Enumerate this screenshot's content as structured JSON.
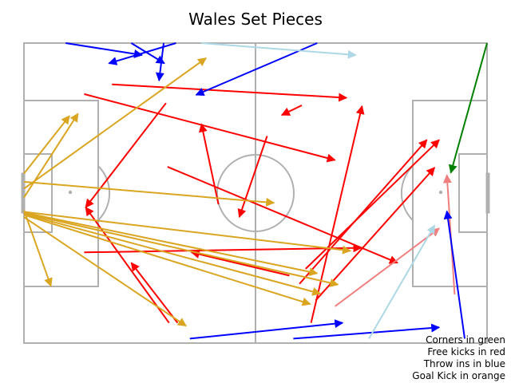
{
  "chart_data": {
    "type": "line",
    "title": "Wales Set Pieces",
    "pitch": {
      "length": 120,
      "width": 80,
      "line_color": "#b0b0b0"
    },
    "legend": [
      "Corners in green",
      "Free kicks in red",
      "Throw ins in blue",
      "Goal Kick in orange"
    ],
    "legend_position": "bottom-right",
    "colors": {
      "corner": "#008000",
      "free_kick": "#ff0000",
      "free_kick_light": "#f08080",
      "throw_in": "#0000ff",
      "throw_in_light": "#add8e6",
      "goal_kick": "#daa520"
    },
    "series": [
      {
        "name": "Corners in green",
        "color": "#008000",
        "passes": [
          {
            "x1": 120.0,
            "y1": 0.0,
            "x2": 110.6,
            "y2": 34.6
          }
        ]
      },
      {
        "name": "Free kicks in red",
        "color": "#ff0000",
        "passes": [
          {
            "x1": 22.8,
            "y1": 11.0,
            "x2": 83.6,
            "y2": 14.6
          },
          {
            "x1": 15.6,
            "y1": 13.6,
            "x2": 80.6,
            "y2": 31.2
          },
          {
            "x1": 36.8,
            "y1": 16.0,
            "x2": 16.0,
            "y2": 43.8
          },
          {
            "x1": 72.0,
            "y1": 16.6,
            "x2": 66.8,
            "y2": 19.2
          },
          {
            "x1": 63.0,
            "y1": 24.8,
            "x2": 55.8,
            "y2": 46.4
          },
          {
            "x1": 50.4,
            "y1": 43.0,
            "x2": 46.0,
            "y2": 21.6
          },
          {
            "x1": 37.2,
            "y1": 33.0,
            "x2": 96.8,
            "y2": 58.6
          },
          {
            "x1": 15.6,
            "y1": 55.8,
            "x2": 87.4,
            "y2": 54.6
          },
          {
            "x1": 68.8,
            "y1": 62.0,
            "x2": 43.4,
            "y2": 55.8
          },
          {
            "x1": 37.6,
            "y1": 74.6,
            "x2": 16.0,
            "y2": 43.8
          },
          {
            "x1": 39.8,
            "y1": 74.6,
            "x2": 27.8,
            "y2": 58.6
          },
          {
            "x1": 74.4,
            "y1": 74.6,
            "x2": 87.6,
            "y2": 16.8
          },
          {
            "x1": 71.4,
            "y1": 64.2,
            "x2": 104.4,
            "y2": 25.8
          },
          {
            "x1": 73.0,
            "y1": 60.2,
            "x2": 107.6,
            "y2": 25.8
          },
          {
            "x1": 75.6,
            "y1": 68.6,
            "x2": 106.4,
            "y2": 33.2
          }
        ]
      },
      {
        "name": "Free kicks (light)",
        "color": "#f08080",
        "passes": [
          {
            "x1": 80.6,
            "y1": 70.2,
            "x2": 107.6,
            "y2": 49.4
          },
          {
            "x1": 111.6,
            "y1": 67.0,
            "x2": 109.6,
            "y2": 35.2
          }
        ]
      },
      {
        "name": "Throw ins in blue",
        "color": "#0000ff",
        "passes": [
          {
            "x1": 10.8,
            "y1": 0.0,
            "x2": 30.6,
            "y2": 3.2
          },
          {
            "x1": 27.8,
            "y1": 0.0,
            "x2": 36.4,
            "y2": 5.4
          },
          {
            "x1": 39.4,
            "y1": 0.0,
            "x2": 22.0,
            "y2": 5.4
          },
          {
            "x1": 36.2,
            "y1": 0.0,
            "x2": 35.0,
            "y2": 10.0
          },
          {
            "x1": 76.0,
            "y1": 0.0,
            "x2": 44.6,
            "y2": 13.8
          },
          {
            "x1": 43.0,
            "y1": 78.8,
            "x2": 82.6,
            "y2": 74.6
          },
          {
            "x1": 69.8,
            "y1": 78.8,
            "x2": 107.6,
            "y2": 75.8
          },
          {
            "x1": 114.2,
            "y1": 78.8,
            "x2": 109.6,
            "y2": 44.8
          }
        ]
      },
      {
        "name": "Throw ins (light)",
        "color": "#add8e6",
        "passes": [
          {
            "x1": 46.0,
            "y1": 0.0,
            "x2": 86.0,
            "y2": 3.2
          },
          {
            "x1": 89.4,
            "y1": 78.8,
            "x2": 106.4,
            "y2": 48.6
          }
        ]
      },
      {
        "name": "Goal Kick in orange",
        "color": "#daa520",
        "passes": [
          {
            "x1": 0.0,
            "y1": 38.8,
            "x2": 47.2,
            "y2": 4.0
          },
          {
            "x1": 0.0,
            "y1": 34.8,
            "x2": 11.8,
            "y2": 19.4
          },
          {
            "x1": 0.0,
            "y1": 41.2,
            "x2": 14.0,
            "y2": 18.8
          },
          {
            "x1": 0.0,
            "y1": 37.0,
            "x2": 64.8,
            "y2": 42.6
          },
          {
            "x1": 0.0,
            "y1": 44.6,
            "x2": 7.0,
            "y2": 64.8
          },
          {
            "x1": 0.0,
            "y1": 45.0,
            "x2": 84.6,
            "y2": 55.4
          },
          {
            "x1": 0.0,
            "y1": 45.2,
            "x2": 76.0,
            "y2": 61.4
          },
          {
            "x1": 0.0,
            "y1": 45.4,
            "x2": 81.4,
            "y2": 64.4
          },
          {
            "x1": 0.0,
            "y1": 45.6,
            "x2": 76.8,
            "y2": 66.8
          },
          {
            "x1": 0.0,
            "y1": 45.8,
            "x2": 74.2,
            "y2": 69.6
          },
          {
            "x1": 0.0,
            "y1": 46.4,
            "x2": 42.0,
            "y2": 75.4
          }
        ]
      }
    ]
  }
}
